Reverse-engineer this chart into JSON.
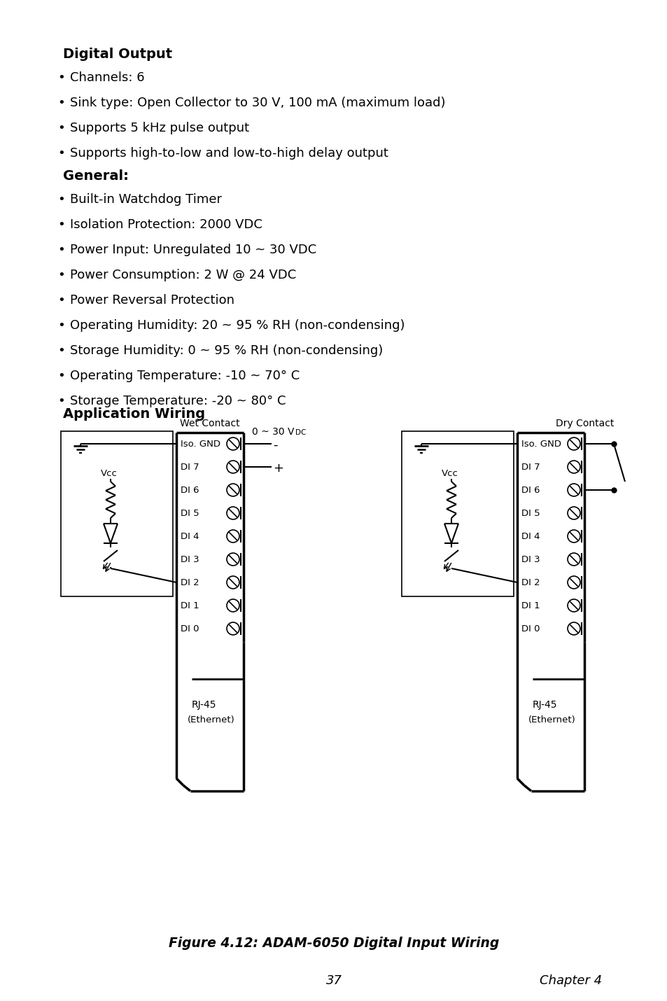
{
  "bg_color": "#ffffff",
  "text_color": "#000000",
  "title": "Digital Output",
  "title2": "General:",
  "title3": "Application Wiring",
  "do_bullets": [
    "Channels: 6",
    "Sink type: Open Collector to 30 V, 100 mA (maximum load)",
    "Supports 5 kHz pulse output",
    "Supports high-to-low and low-to-high delay output"
  ],
  "gen_bullets": [
    "Built-in Watchdog Timer",
    "Isolation Protection: 2000 VDC",
    "Power Input: Unregulated 10 ~ 30 VDC",
    "Power Consumption: 2 W @ 24 VDC",
    "Power Reversal Protection",
    "Operating Humidity: 20 ~ 95 % RH (non-condensing)",
    "Storage Humidity: 0 ~ 95 % RH (non-condensing)",
    "Operating Temperature: -10 ~ 70° C",
    "Storage Temperature: -20 ~ 80° C"
  ],
  "fig_caption": "Figure 4.12: ADAM-6050 Digital Input Wiring",
  "page_num": "37",
  "chapter": "Chapter 4",
  "wet_contact_label": "Wet Contact",
  "dry_contact_label": "Dry Contact",
  "di_labels": [
    "Iso. GND",
    "DI 7",
    "DI 6",
    "DI 5",
    "DI 4",
    "DI 3",
    "DI 2",
    "DI 1",
    "DI 0"
  ],
  "rj45_label": "RJ-45",
  "ethernet_label": "(Ethernet)",
  "vcc_label": "Vcc",
  "minus_label": "-",
  "plus_label": "+"
}
